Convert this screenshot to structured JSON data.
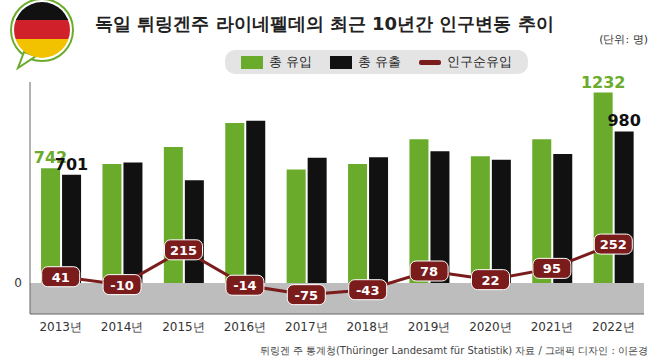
{
  "chart_data": {
    "type": "bar",
    "title": "독일 튀링겐주 라이네펠데의 최근 10년간 인구변동 추이",
    "subtitle": "(단위: 명)",
    "caption": "튀링겐 주 통계청(Thüringer Landesamt für Statistik) 자료 / 그래픽 디자인 : 이은경",
    "categories": [
      "2013년",
      "2014년",
      "2015년",
      "2016년",
      "2017년",
      "2018년",
      "2019년",
      "2020년",
      "2021년",
      "2022년"
    ],
    "series": [
      {
        "name": "총 유입",
        "color": "#6aab2c",
        "values": [
          742,
          770,
          880,
          1035,
          735,
          770,
          930,
          820,
          930,
          1232
        ],
        "value_labels": [
          "742",
          null,
          null,
          null,
          null,
          null,
          null,
          null,
          null,
          "1232"
        ]
      },
      {
        "name": "총 유출",
        "color": "#111111",
        "values": [
          701,
          780,
          665,
          1049,
          810,
          813,
          852,
          798,
          835,
          980
        ],
        "value_labels": [
          "701",
          null,
          null,
          null,
          null,
          null,
          null,
          null,
          null,
          "980"
        ]
      },
      {
        "name": "인구순유입",
        "type": "line",
        "color": "#7a1c1c",
        "values": [
          41,
          -10,
          215,
          -14,
          -75,
          -43,
          78,
          22,
          95,
          252
        ],
        "data_labels": true
      }
    ],
    "ylim": [
      -200,
      1300
    ],
    "yticks": [
      0
    ],
    "grid": false,
    "legend": "top"
  }
}
